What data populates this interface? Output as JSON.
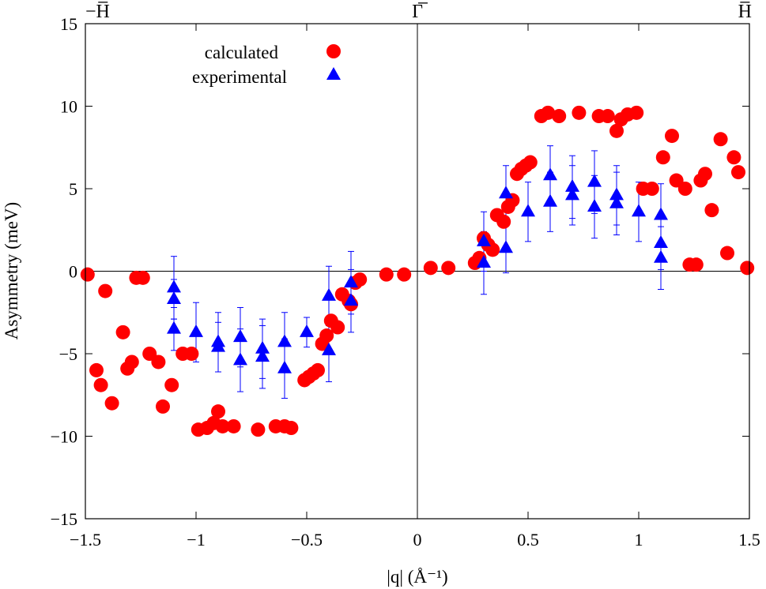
{
  "chart_data": {
    "type": "scatter",
    "title": "",
    "xlabel": "|q| (Å⁻¹)",
    "ylabel": "Asymmetry (meV)",
    "xlim": [
      -1.5,
      1.5
    ],
    "ylim": [
      -15,
      15
    ],
    "xticks": [
      -1.5,
      -1,
      -0.5,
      0,
      0.5,
      1,
      1.5
    ],
    "xtick_labels": [
      "−1.5",
      "−1",
      "−0.5",
      "0",
      "0.5",
      "1",
      "1.5"
    ],
    "yticks": [
      -15,
      -10,
      -5,
      0,
      5,
      10,
      15
    ],
    "ytick_labels": [
      "−15",
      "−10",
      "−5",
      "0",
      "5",
      "10",
      "15"
    ],
    "top_labels": [
      {
        "x": -1.5,
        "text": "−H̅"
      },
      {
        "x": 0,
        "text": "Γ̅"
      },
      {
        "x": 1.5,
        "text": "H̅"
      }
    ],
    "legend": {
      "position": "top-left"
    },
    "series": [
      {
        "name": "calculated",
        "marker": "circle",
        "color": "#ff0000",
        "points": [
          [
            -1.49,
            -0.2
          ],
          [
            -1.45,
            -6.0
          ],
          [
            -1.43,
            -6.9
          ],
          [
            -1.41,
            -1.2
          ],
          [
            -1.38,
            -8.0
          ],
          [
            -1.33,
            -3.7
          ],
          [
            -1.31,
            -5.9
          ],
          [
            -1.29,
            -5.5
          ],
          [
            -1.27,
            -0.4
          ],
          [
            -1.24,
            -0.4
          ],
          [
            -1.21,
            -5.0
          ],
          [
            -1.17,
            -5.5
          ],
          [
            -1.15,
            -8.2
          ],
          [
            -1.11,
            -6.9
          ],
          [
            -1.06,
            -5.0
          ],
          [
            -1.02,
            -5.0
          ],
          [
            -0.99,
            -9.6
          ],
          [
            -0.95,
            -9.5
          ],
          [
            -0.92,
            -9.2
          ],
          [
            -0.9,
            -8.5
          ],
          [
            -0.88,
            -9.4
          ],
          [
            -0.83,
            -9.4
          ],
          [
            -0.72,
            -9.6
          ],
          [
            -0.64,
            -9.4
          ],
          [
            -0.6,
            -9.4
          ],
          [
            -0.57,
            -9.5
          ],
          [
            -0.51,
            -6.6
          ],
          [
            -0.49,
            -6.4
          ],
          [
            -0.47,
            -6.2
          ],
          [
            -0.45,
            -6.0
          ],
          [
            -0.43,
            -4.4
          ],
          [
            -0.41,
            -3.9
          ],
          [
            -0.39,
            -3.0
          ],
          [
            -0.36,
            -3.4
          ],
          [
            -0.34,
            -1.4
          ],
          [
            -0.31,
            -1.8
          ],
          [
            -0.3,
            -2.0
          ],
          [
            -0.28,
            -0.7
          ],
          [
            -0.26,
            -0.5
          ],
          [
            -0.14,
            -0.2
          ],
          [
            -0.06,
            -0.2
          ],
          [
            0.06,
            0.2
          ],
          [
            0.14,
            0.2
          ],
          [
            0.26,
            0.5
          ],
          [
            0.28,
            0.8
          ],
          [
            0.3,
            2.0
          ],
          [
            0.32,
            1.6
          ],
          [
            0.34,
            1.3
          ],
          [
            0.36,
            3.4
          ],
          [
            0.39,
            3.0
          ],
          [
            0.41,
            3.9
          ],
          [
            0.43,
            4.3
          ],
          [
            0.45,
            5.9
          ],
          [
            0.47,
            6.2
          ],
          [
            0.49,
            6.4
          ],
          [
            0.51,
            6.6
          ],
          [
            0.56,
            9.4
          ],
          [
            0.59,
            9.6
          ],
          [
            0.64,
            9.4
          ],
          [
            0.73,
            9.6
          ],
          [
            0.82,
            9.4
          ],
          [
            0.86,
            9.4
          ],
          [
            0.9,
            8.5
          ],
          [
            0.92,
            9.2
          ],
          [
            0.95,
            9.5
          ],
          [
            0.99,
            9.6
          ],
          [
            1.02,
            5.0
          ],
          [
            1.06,
            5.0
          ],
          [
            1.11,
            6.9
          ],
          [
            1.15,
            8.2
          ],
          [
            1.17,
            5.5
          ],
          [
            1.21,
            5.0
          ],
          [
            1.23,
            0.4
          ],
          [
            1.26,
            0.4
          ],
          [
            1.28,
            5.5
          ],
          [
            1.3,
            5.9
          ],
          [
            1.33,
            3.7
          ],
          [
            1.37,
            8.0
          ],
          [
            1.4,
            1.1
          ],
          [
            1.43,
            6.9
          ],
          [
            1.45,
            6.0
          ],
          [
            1.49,
            0.2
          ]
        ]
      },
      {
        "name": "experimental",
        "marker": "triangle",
        "color": "#0000ff",
        "points": [
          [
            -1.1,
            -1.0,
            1.9
          ],
          [
            -1.1,
            -1.7,
            1.2
          ],
          [
            -1.1,
            -3.5,
            1.3
          ],
          [
            -1.0,
            -3.7,
            1.8
          ],
          [
            -0.9,
            -4.3,
            1.8
          ],
          [
            -0.9,
            -4.6,
            1.5
          ],
          [
            -0.8,
            -4.0,
            1.8
          ],
          [
            -0.8,
            -5.4,
            1.9
          ],
          [
            -0.7,
            -4.7,
            1.8
          ],
          [
            -0.7,
            -5.2,
            1.9
          ],
          [
            -0.6,
            -4.3,
            1.8
          ],
          [
            -0.6,
            -5.9,
            1.8
          ],
          [
            -0.5,
            -3.7,
            0.9
          ],
          [
            -0.4,
            -1.5,
            1.8
          ],
          [
            -0.4,
            -4.8,
            1.9
          ],
          [
            -0.3,
            -0.7,
            1.9
          ],
          [
            -0.3,
            -1.8,
            1.9
          ],
          [
            0.3,
            0.5,
            1.9
          ],
          [
            0.3,
            1.8,
            1.8
          ],
          [
            0.4,
            1.4,
            1.5
          ],
          [
            0.4,
            4.7,
            1.7
          ],
          [
            0.5,
            3.6,
            1.8
          ],
          [
            0.6,
            4.2,
            1.8
          ],
          [
            0.6,
            5.8,
            1.8
          ],
          [
            0.7,
            4.6,
            1.8
          ],
          [
            0.7,
            5.1,
            1.9
          ],
          [
            0.8,
            3.9,
            1.9
          ],
          [
            0.8,
            5.4,
            1.9
          ],
          [
            0.9,
            4.1,
            1.9
          ],
          [
            0.9,
            4.6,
            1.8
          ],
          [
            1.0,
            3.6,
            1.8
          ],
          [
            1.1,
            0.8,
            1.9
          ],
          [
            1.1,
            1.7,
            1.6
          ],
          [
            1.1,
            3.4,
            1.9
          ]
        ]
      }
    ]
  }
}
